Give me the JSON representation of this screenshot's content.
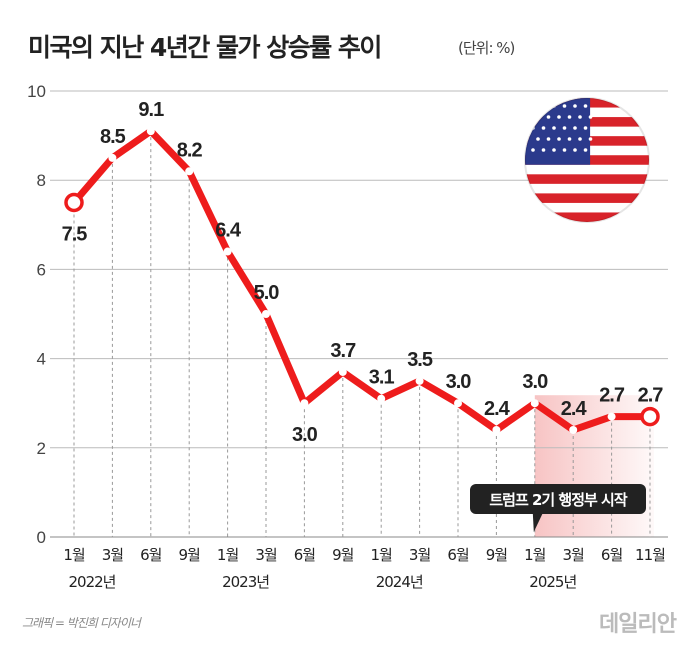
{
  "header": {
    "title": "미국의 지난 4년간 물가 상승률 추이",
    "unit": "(단위: %)"
  },
  "footer": {
    "credit": "그래픽 = 박진희 디자이너",
    "logo": "데일리안"
  },
  "colors": {
    "line": "#ee1c1c",
    "grid": "#bbbbbb",
    "highlight": "#f7c4c4",
    "annotation_bg": "#222222"
  },
  "flag_icon": "us-flag-circle",
  "chart_data": {
    "type": "line",
    "title": "",
    "ylim": [
      0,
      10
    ],
    "yticks": [
      0,
      2,
      4,
      6,
      8,
      10
    ],
    "grid": true,
    "x": [
      "1월",
      "3월",
      "6월",
      "9월",
      "1월",
      "3월",
      "6월",
      "9월",
      "1월",
      "3월",
      "6월",
      "9월",
      "1월",
      "3월",
      "6월",
      "11월"
    ],
    "years": [
      {
        "label": "2022년",
        "index": 0
      },
      {
        "label": "2023년",
        "index": 4
      },
      {
        "label": "2024년",
        "index": 8
      },
      {
        "label": "2025년",
        "index": 12
      }
    ],
    "values": [
      7.5,
      8.5,
      9.1,
      8.2,
      6.4,
      5.0,
      3.0,
      3.7,
      3.1,
      3.5,
      3.0,
      2.4,
      3.0,
      2.4,
      2.7,
      2.7
    ],
    "labels": [
      "7.5",
      "8.5",
      "9.1",
      "8.2",
      "6.4",
      "5.0",
      "3.0",
      "3.7",
      "3.1",
      "3.5",
      "3.0",
      "2.4",
      "3.0",
      "2.4",
      "2.7",
      "2.7"
    ],
    "highlight_from_index": 12,
    "annotation": {
      "text": "트럼프 2기 행정부 시작",
      "index": 12
    }
  }
}
